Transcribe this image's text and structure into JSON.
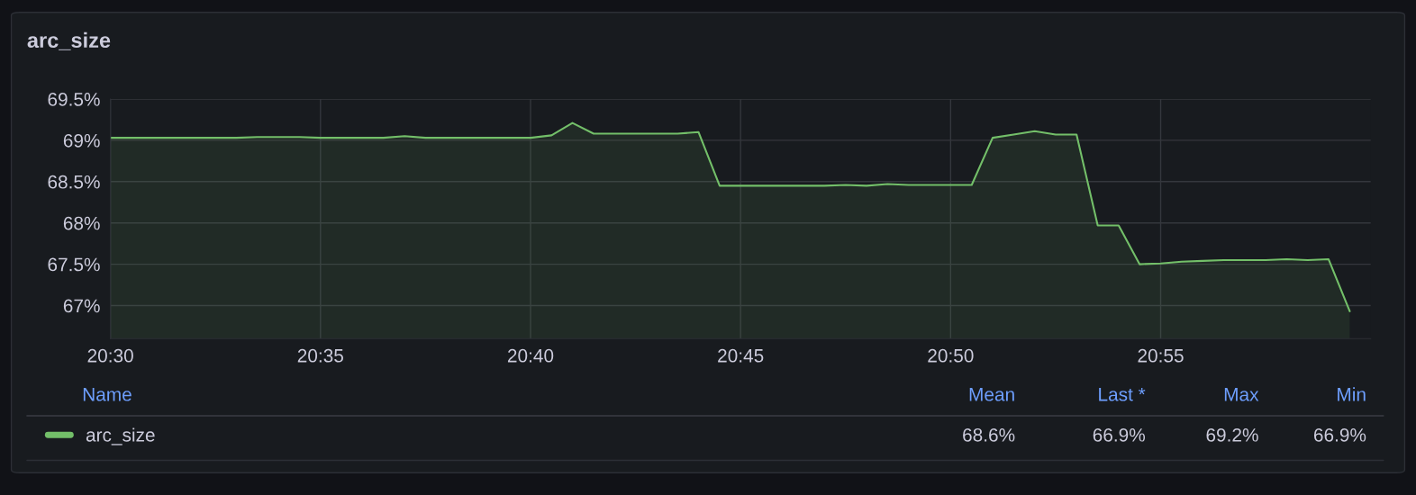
{
  "chart_data": {
    "type": "area",
    "title": "arc_size",
    "x": [
      20.5,
      20.5083,
      20.5167,
      20.525,
      20.5333,
      20.5417,
      20.55,
      20.5583,
      20.5667,
      20.575,
      20.5833,
      20.5917,
      20.6,
      20.6083,
      20.6167,
      20.625,
      20.6333,
      20.6417,
      20.65,
      20.6583,
      20.6667,
      20.675,
      20.6833,
      20.6917,
      20.7,
      20.7083,
      20.7167,
      20.725,
      20.7333,
      20.7417,
      20.75,
      20.7583,
      20.7667,
      20.775,
      20.7833,
      20.7917,
      20.8,
      20.8083,
      20.8167,
      20.825,
      20.8333,
      20.8417,
      20.85,
      20.8583,
      20.8667,
      20.875,
      20.8833,
      20.8917,
      20.9,
      20.9083,
      20.9167,
      20.925,
      20.9333,
      20.9417,
      20.95,
      20.9583,
      20.9667,
      20.975,
      20.9833,
      20.9917
    ],
    "series": [
      {
        "name": "arc_size",
        "color": "#73bf69",
        "values": [
          69.03,
          69.03,
          69.03,
          69.03,
          69.03,
          69.03,
          69.03,
          69.04,
          69.04,
          69.04,
          69.03,
          69.03,
          69.03,
          69.03,
          69.05,
          69.03,
          69.03,
          69.03,
          69.03,
          69.03,
          69.03,
          69.06,
          69.21,
          69.08,
          69.08,
          69.08,
          69.08,
          69.08,
          69.1,
          68.45,
          68.45,
          68.45,
          68.45,
          68.45,
          68.45,
          68.46,
          68.45,
          68.47,
          68.46,
          68.46,
          68.46,
          68.46,
          69.03,
          69.07,
          69.11,
          69.07,
          69.07,
          67.97,
          67.97,
          67.5,
          67.51,
          67.53,
          67.54,
          67.55,
          67.55,
          67.55,
          67.56,
          67.55,
          67.56,
          66.93
        ]
      }
    ],
    "xlim": [
      20.5,
      21.0
    ],
    "xticks": [
      {
        "value": 20.5,
        "label": "20:30"
      },
      {
        "value": 20.583333,
        "label": "20:35"
      },
      {
        "value": 20.666667,
        "label": "20:40"
      },
      {
        "value": 20.75,
        "label": "20:45"
      },
      {
        "value": 20.833333,
        "label": "20:50"
      },
      {
        "value": 20.916667,
        "label": "20:55"
      }
    ],
    "ylim": [
      66.6,
      69.5
    ],
    "yticks": [
      {
        "value": 67,
        "label": "67%"
      },
      {
        "value": 67.5,
        "label": "67.5%"
      },
      {
        "value": 68,
        "label": "68%"
      },
      {
        "value": 68.5,
        "label": "68.5%"
      },
      {
        "value": 69,
        "label": "69%"
      },
      {
        "value": 69.5,
        "label": "69.5%"
      }
    ],
    "grid": true,
    "legend": "bottom",
    "annotations": [
      "Name",
      "Mean",
      "Last *",
      "Max",
      "Min",
      "68.6%",
      "66.9%",
      "69.2%",
      "66.9%"
    ]
  }
}
